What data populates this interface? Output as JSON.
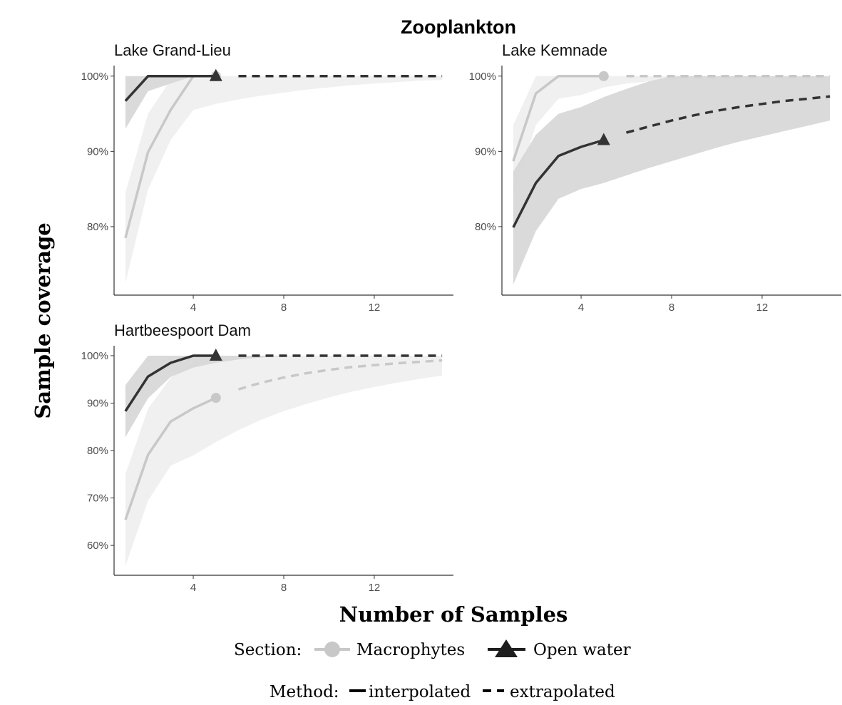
{
  "colors": {
    "macrophytes_line": "#c8c8c8",
    "macrophytes_band": "#f0f0f0",
    "openwater_line": "#333333",
    "openwater_band": "#d6d6d6",
    "axis": "#333333"
  },
  "chart_data": {
    "type": "line",
    "title": "Zooplankton",
    "xlabel": "Number of Samples",
    "ylabel": "Sample coverage",
    "legend": {
      "section_title": "Section:",
      "section_items": [
        {
          "name": "Macrophytes",
          "marker": "circle"
        },
        {
          "name": "Open water",
          "marker": "triangle"
        }
      ],
      "method_title": "Method:",
      "method_items": [
        {
          "name": "interpolated",
          "linestyle": "solid"
        },
        {
          "name": "extrapolated",
          "linestyle": "dashed"
        }
      ]
    },
    "panels": [
      {
        "title": "Lake Grand-Lieu",
        "xlim": [
          0.5,
          15.5
        ],
        "xticks": [
          4,
          8,
          12
        ],
        "xtick_labels": [
          "4",
          "8",
          "12"
        ],
        "ylim": [
          70.9,
          101.4
        ],
        "yticks": [
          80,
          90,
          100
        ],
        "ytick_labels": [
          "80%",
          "90%",
          "100%"
        ],
        "series": [
          {
            "name": "Macrophytes",
            "interpolated": {
              "x": [
                1,
                2,
                3,
                4,
                5
              ],
              "y": [
                78.5,
                89.9,
                95.5,
                100,
                100
              ]
            },
            "observed": {
              "x": 5,
              "y": 100
            },
            "extrapolated": {
              "x": [
                6,
                7,
                8,
                9,
                10,
                11,
                12,
                13,
                14,
                15
              ],
              "y": [
                100,
                100,
                100,
                100,
                100,
                100,
                100,
                100,
                100,
                100
              ]
            },
            "ci_lower": [
              72.5,
              84.9,
              91.5,
              95.5,
              96.3,
              96.9,
              97.4,
              97.8,
              98.2,
              98.5,
              98.8,
              99.0,
              99.2,
              99.4,
              99.5
            ],
            "ci_upper": [
              84.5,
              95.0,
              99.5,
              100,
              100,
              100,
              100,
              100,
              100,
              100,
              100,
              100,
              100,
              100,
              100
            ]
          },
          {
            "name": "Open water",
            "interpolated": {
              "x": [
                1,
                2,
                3,
                4,
                5
              ],
              "y": [
                96.7,
                100,
                100,
                100,
                100
              ]
            },
            "observed": {
              "x": 5,
              "y": 100
            },
            "extrapolated": {
              "x": [
                6,
                7,
                8,
                9,
                10,
                11,
                12,
                13,
                14,
                15
              ],
              "y": [
                100,
                100,
                100,
                100,
                100,
                100,
                100,
                100,
                100,
                100
              ]
            },
            "ci_lower": [
              93.0,
              98.0,
              99.0,
              100,
              100,
              100,
              100,
              100,
              100,
              100,
              100,
              100,
              100,
              100,
              100
            ],
            "ci_upper": [
              100,
              100,
              100,
              100,
              100,
              100,
              100,
              100,
              100,
              100,
              100,
              100,
              100,
              100,
              100
            ]
          }
        ]
      },
      {
        "title": "Lake Kemnade",
        "xlim": [
          0.5,
          15.5
        ],
        "xticks": [
          4,
          8,
          12
        ],
        "xtick_labels": [
          "4",
          "8",
          "12"
        ],
        "ylim": [
          70.9,
          101.4
        ],
        "yticks": [
          80,
          90,
          100
        ],
        "ytick_labels": [
          "80%",
          "90%",
          "100%"
        ],
        "series": [
          {
            "name": "Macrophytes",
            "interpolated": {
              "x": [
                1,
                2,
                3,
                4,
                5
              ],
              "y": [
                88.7,
                97.7,
                100,
                100,
                100
              ]
            },
            "observed": {
              "x": 5,
              "y": 100
            },
            "extrapolated": {
              "x": [
                6,
                7,
                8,
                9,
                10,
                11,
                12,
                13,
                14,
                15
              ],
              "y": [
                100,
                100,
                100,
                100,
                100,
                100,
                100,
                100,
                100,
                100
              ]
            },
            "ci_lower": [
              84.0,
              93.5,
              97.0,
              97.5,
              98.5,
              99.0,
              99.3,
              99.5,
              99.7,
              99.8,
              99.9,
              100,
              100,
              100,
              100
            ],
            "ci_upper": [
              93.5,
              100,
              100,
              100,
              100,
              100,
              100,
              100,
              100,
              100,
              100,
              100,
              100,
              100,
              100
            ]
          },
          {
            "name": "Open water",
            "interpolated": {
              "x": [
                1,
                2,
                3,
                4,
                5
              ],
              "y": [
                79.9,
                85.8,
                89.4,
                90.6,
                91.5
              ]
            },
            "observed": {
              "x": 5,
              "y": 91.5
            },
            "extrapolated": {
              "x": [
                6,
                7,
                8,
                9,
                10,
                11,
                12,
                13,
                14,
                15
              ],
              "y": [
                92.5,
                93.3,
                94.1,
                94.8,
                95.4,
                95.9,
                96.3,
                96.7,
                97.0,
                97.3
              ]
            },
            "ci_lower": [
              72.3,
              79.4,
              83.7,
              85.0,
              85.8,
              86.8,
              87.8,
              88.7,
              89.6,
              90.5,
              91.3,
              92.0,
              92.7,
              93.4,
              94.1
            ],
            "ci_upper": [
              87.3,
              92.2,
              95.0,
              95.9,
              97.2,
              98.3,
              99.3,
              100,
              100,
              100,
              100,
              100,
              100,
              100,
              100
            ]
          }
        ]
      },
      {
        "title": "Hartbeespoort Dam",
        "xlim": [
          0.5,
          15.5
        ],
        "xticks": [
          4,
          8,
          12
        ],
        "xtick_labels": [
          "4",
          "8",
          "12"
        ],
        "ylim": [
          53.7,
          102.1
        ],
        "yticks": [
          60,
          70,
          80,
          90,
          100
        ],
        "ytick_labels": [
          "60%",
          "70%",
          "80%",
          "90%",
          "100%"
        ],
        "series": [
          {
            "name": "Macrophytes",
            "interpolated": {
              "x": [
                1,
                2,
                3,
                4,
                5
              ],
              "y": [
                65.4,
                79.1,
                86.1,
                88.9,
                91.1
              ]
            },
            "observed": {
              "x": 5,
              "y": 91.1
            },
            "extrapolated": {
              "x": [
                6,
                7,
                8,
                9,
                10,
                11,
                12,
                13,
                14,
                15
              ],
              "y": [
                92.9,
                94.3,
                95.4,
                96.3,
                97.0,
                97.6,
                98.0,
                98.4,
                98.7,
                99.0
              ]
            },
            "ci_lower": [
              55.6,
              69.4,
              76.8,
              79.0,
              81.8,
              84.3,
              86.5,
              88.3,
              89.8,
              91.2,
              92.4,
              93.4,
              94.3,
              95.1,
              95.8
            ],
            "ci_upper": [
              75.0,
              88.8,
              95.3,
              98.7,
              100,
              100,
              100,
              100,
              100,
              100,
              100,
              100,
              100,
              100,
              100
            ]
          },
          {
            "name": "Open water",
            "interpolated": {
              "x": [
                1,
                2,
                3,
                4,
                5
              ],
              "y": [
                88.3,
                95.6,
                98.5,
                100,
                100
              ]
            },
            "observed": {
              "x": 5,
              "y": 100
            },
            "extrapolated": {
              "x": [
                6,
                7,
                8,
                9,
                10,
                11,
                12,
                13,
                14,
                15
              ],
              "y": [
                100,
                100,
                100,
                100,
                100,
                100,
                100,
                100,
                100,
                100
              ]
            },
            "ci_lower": [
              82.8,
              91.0,
              95.5,
              97.5,
              98.5,
              99.2,
              99.6,
              100,
              100,
              100,
              100,
              100,
              100,
              100,
              100
            ],
            "ci_upper": [
              93.8,
              100,
              100,
              100,
              100,
              100,
              100,
              100,
              100,
              100,
              100,
              100,
              100,
              100,
              100
            ]
          }
        ]
      }
    ]
  }
}
